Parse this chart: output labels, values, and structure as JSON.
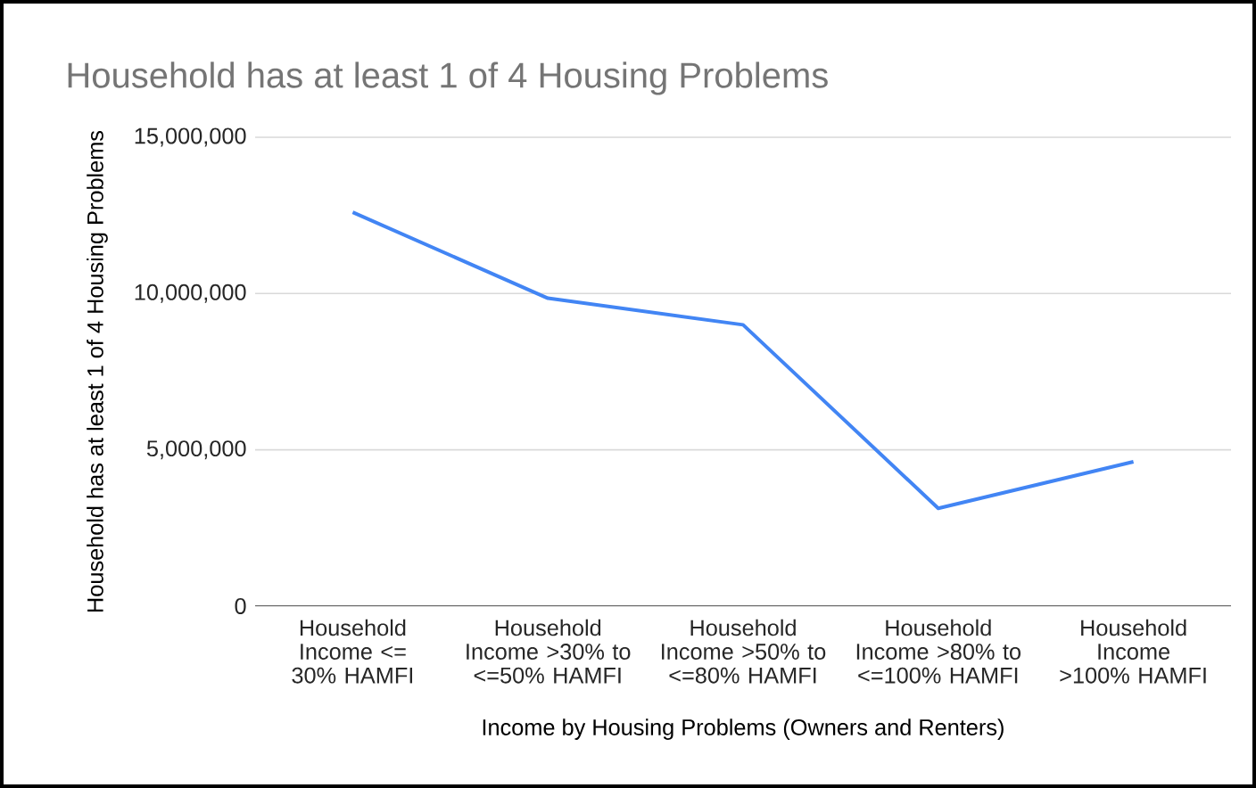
{
  "chart_data": {
    "type": "line",
    "title": "Household has at least 1 of 4 Housing Problems",
    "xlabel": "Income by Housing Problems (Owners and Renters)",
    "ylabel": "Household has at least 1 of 4 Housing Problems",
    "categories": [
      "Household Income <= 30% HAMFI",
      "Household Income >30% to <=50% HAMFI",
      "Household Income >50% to <=80% HAMFI",
      "Household Income >80% to <=100% HAMFI",
      "Household Income >100% HAMFI"
    ],
    "series": [
      {
        "color": "#4285f4",
        "values": [
          12600000,
          9850000,
          9000000,
          3130000,
          4620000
        ]
      }
    ],
    "ylim": [
      0,
      15000000
    ],
    "yticks": [
      0,
      {
        "value": 5000000,
        "label": "5,000,000"
      },
      {
        "value": 10000000,
        "label": "10,000,000"
      },
      {
        "value": 15000000,
        "label": "15,000,000"
      }
    ],
    "grid": "y",
    "marker": "none",
    "line_style": "solid"
  }
}
